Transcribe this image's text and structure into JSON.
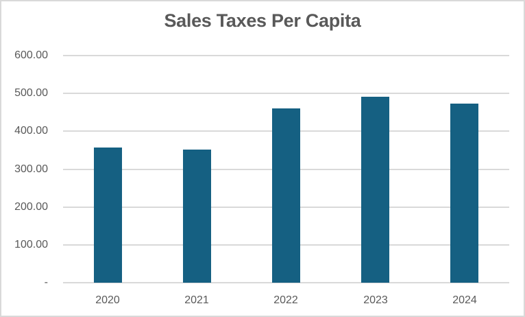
{
  "chart_data": {
    "type": "bar",
    "title": "Sales Taxes Per Capita",
    "categories": [
      "2020",
      "2021",
      "2022",
      "2023",
      "2024"
    ],
    "values": [
      357,
      351,
      460,
      491,
      474
    ],
    "xlabel": "",
    "ylabel": "",
    "ylim": [
      0,
      600
    ],
    "ytick_interval": 100,
    "ytick_labels": [
      "600.00",
      "500.00",
      "400.00",
      "300.00",
      "200.00",
      "100.00",
      "-"
    ],
    "grid": true,
    "legend": false,
    "colors": {
      "bar": "#156082",
      "gridline": "#D9D9D9",
      "axis_line": "#D9D9D9",
      "text": "#595959",
      "border": "#D9D9D9",
      "background": "#FFFFFF"
    }
  }
}
